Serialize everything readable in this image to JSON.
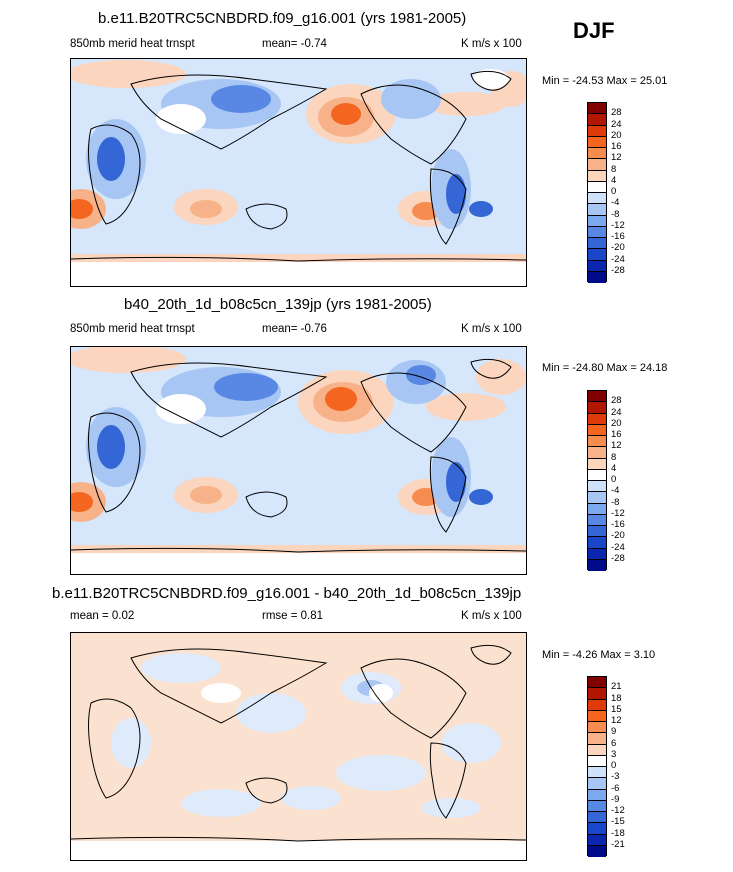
{
  "season_label": "DJF",
  "palette_colors": [
    "#800000",
    "#b01600",
    "#de3a0a",
    "#f4661f",
    "#f68c4f",
    "#f8b28a",
    "#fbd5bd",
    "#ffffff",
    "#cfe1fb",
    "#a7c6f4",
    "#7ea8ec",
    "#5888e4",
    "#3466d6",
    "#1a46c9",
    "#0b27b0",
    "#000b8a"
  ],
  "panels": [
    {
      "title": "b.e11.B20TRC5CNBDRD.f09_g16.001 (yrs 1981-2005)",
      "left_label": "850mb merid heat trnspt",
      "center_label": "mean=  -0.74",
      "units": "K m/s x 100",
      "minmax": "Min = -24.53 Max =  25.01",
      "colorbar_ticks": [
        "28",
        "24",
        "20",
        "16",
        "12",
        "8",
        "4",
        "0",
        "-4",
        "-8",
        "-12",
        "-16",
        "-20",
        "-24",
        "-28"
      ]
    },
    {
      "title": "b40_20th_1d_b08c5cn_139jp (yrs 1981-2005)",
      "left_label": "850mb merid heat trnspt",
      "center_label": "mean=  -0.76",
      "units": "K m/s x 100",
      "minmax": "Min = -24.80 Max =  24.18",
      "colorbar_ticks": [
        "28",
        "24",
        "20",
        "16",
        "12",
        "8",
        "4",
        "0",
        "-4",
        "-8",
        "-12",
        "-16",
        "-20",
        "-24",
        "-28"
      ]
    },
    {
      "title": "b.e11.B20TRC5CNBDRD.f09_g16.001 - b40_20th_1d_b08c5cn_139jp",
      "left_label": "mean =   0.02",
      "center_label": "rmse =   0.81",
      "units": "K m/s x 100",
      "minmax": "Min =  -4.26 Max =   3.10",
      "colorbar_ticks": [
        "21",
        "18",
        "15",
        "12",
        "9",
        "6",
        "3",
        "0",
        "-3",
        "-6",
        "-9",
        "-12",
        "-15",
        "-18",
        "-21"
      ]
    }
  ]
}
